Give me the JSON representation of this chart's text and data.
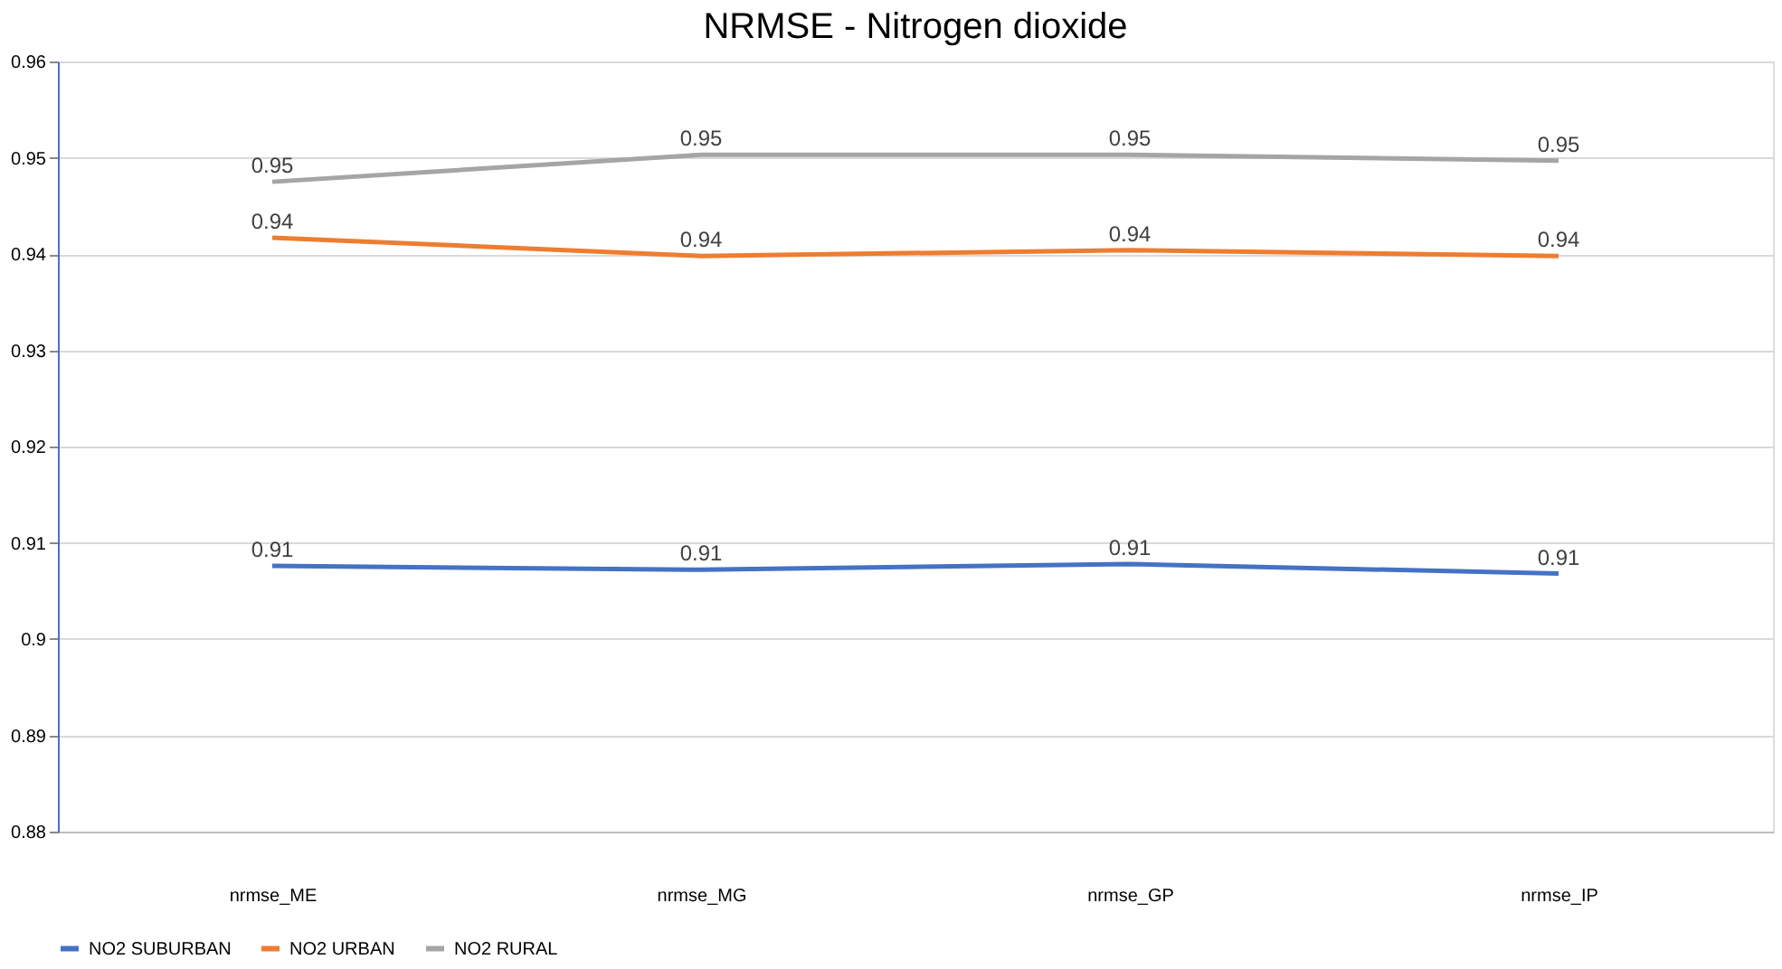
{
  "chart_data": {
    "type": "line",
    "title": "NRMSE - Nitrogen dioxide",
    "categories": [
      "nrmse_ME",
      "nrmse_MG",
      "nrmse_GP",
      "nrmse_IP"
    ],
    "series": [
      {
        "name": "NO2 SUBURBAN",
        "color": "#4472c4",
        "values": [
          0.9076,
          0.9072,
          0.9078,
          0.9068
        ],
        "value_labels": [
          "0.91",
          "0.91",
          "0.91",
          "0.91"
        ]
      },
      {
        "name": "NO2 URBAN",
        "color": "#ed7d31",
        "values": [
          0.9417,
          0.9398,
          0.9404,
          0.9398
        ],
        "value_labels": [
          "0.94",
          "0.94",
          "0.94",
          "0.94"
        ]
      },
      {
        "name": "NO2 RURAL",
        "color": "#a5a5a5",
        "values": [
          0.9475,
          0.9503,
          0.9503,
          0.9497
        ],
        "value_labels": [
          "0.95",
          "0.95",
          "0.95",
          "0.95"
        ]
      }
    ],
    "ylim": [
      0.88,
      0.96
    ],
    "yticks": [
      0.88,
      0.89,
      0.9,
      0.91,
      0.92,
      0.93,
      0.94,
      0.95,
      0.96
    ],
    "grid": "y",
    "legend": "bottom",
    "marker": "none",
    "line_style": "solid"
  }
}
